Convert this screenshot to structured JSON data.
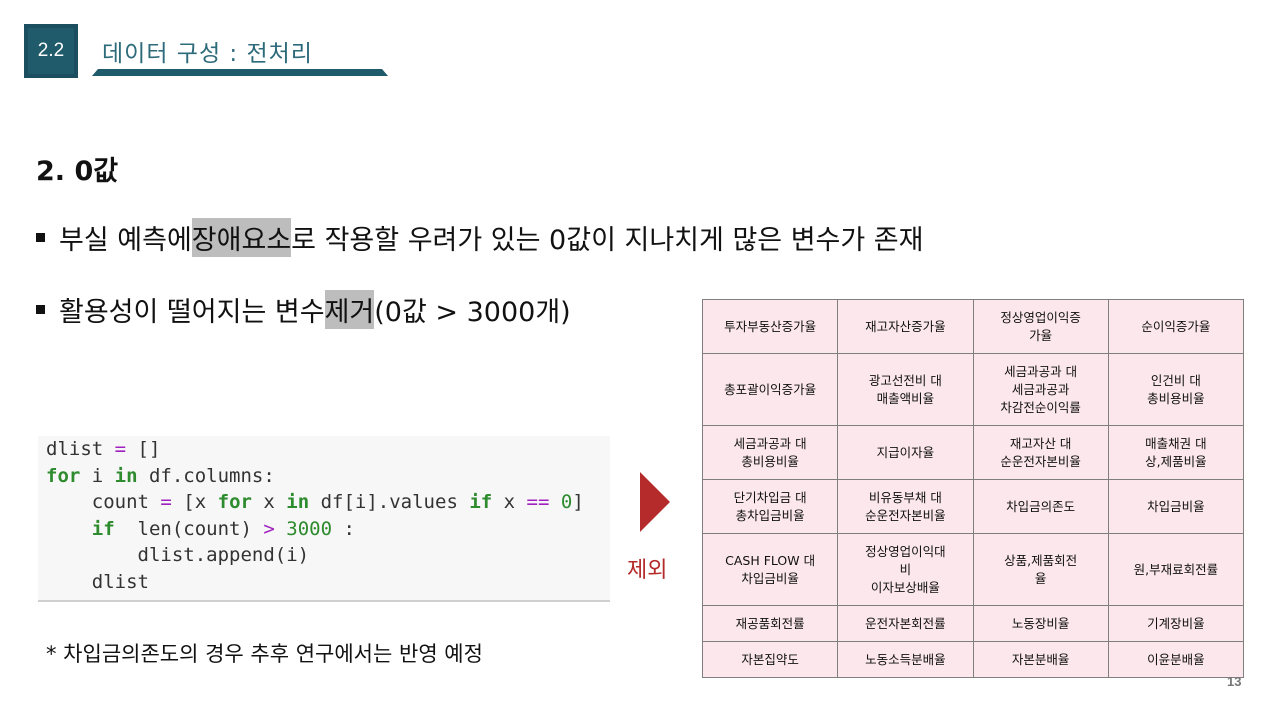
{
  "header": {
    "section_number": "2.2",
    "section_title": "데이터 구성 : 전처리",
    "accent_color": "#1f5b6b"
  },
  "heading": "2. 0값",
  "bullets": {
    "b1_pre": "부실 예측에 ",
    "b1_hl1": "장애",
    "b1_space": " ",
    "b1_hl2": "요소",
    "b1_post": "로 작용할 우려가 있는 0값이 지나치게 많은 변수가 존재",
    "b2_pre": "활용성이 떨어지는 변수 ",
    "b2_hl": "제거",
    "b2_post": " (0값 > 3000개)"
  },
  "code": {
    "l1_a": "dlist",
    "l1_b": " = ",
    "l1_c": "[]",
    "l2_kw1": "for",
    "l2_a": " i ",
    "l2_kw2": "in",
    "l2_b": " df.columns:",
    "l3_indent": "    ",
    "l3_a": "count ",
    "l3_op1": "=",
    "l3_b": " [x ",
    "l3_kw1": "for",
    "l3_c": " x ",
    "l3_kw2": "in",
    "l3_d": " df[i].values ",
    "l3_kw3": "if",
    "l3_e": " x ",
    "l3_op2": "==",
    "l3_f": " ",
    "l3_num": "0",
    "l3_g": "]",
    "l4_indent": "    ",
    "l4_kw": "if",
    "l4_a": "  len(count) ",
    "l4_op": ">",
    "l4_b": " ",
    "l4_num": "3000",
    "l4_c": " :",
    "l5": "        dlist.append(i)",
    "l6": "    dlist"
  },
  "arrow_label": "제외",
  "note": "* 차입금의존도의 경우 추후 연구에서는 반영 예정",
  "table": {
    "rows": [
      [
        "투자부동산증가율",
        "재고자산증가율",
        "정상영업이익증\n가율",
        "순이익증가율"
      ],
      [
        "총포괄이익증가율",
        "광고선전비 대\n매출액비율",
        "세금과공과 대\n세금과공과\n차감전순이익률",
        "인건비 대\n총비용비율"
      ],
      [
        "세금과공과 대\n총비용비율",
        "지급이자율",
        "재고자산 대\n순운전자본비율",
        "매출채권 대\n상,제품비율"
      ],
      [
        "단기차입금 대\n총차입금비율",
        "비유동부채 대\n순운전자본비율",
        "차입금의존도",
        "차입금비율"
      ],
      [
        "CASH FLOW 대\n차입금비율",
        "정상영업이익대\n비\n이자보상배율",
        "상품,제품회전\n율",
        "원,부재료회전률"
      ],
      [
        "재공품회전률",
        "운전자본회전률",
        "노동장비율",
        "기계장비율"
      ],
      [
        "자본집약도",
        "노동소득분배율",
        "자본분배율",
        "이윤분배율"
      ]
    ]
  },
  "page_number": "13"
}
